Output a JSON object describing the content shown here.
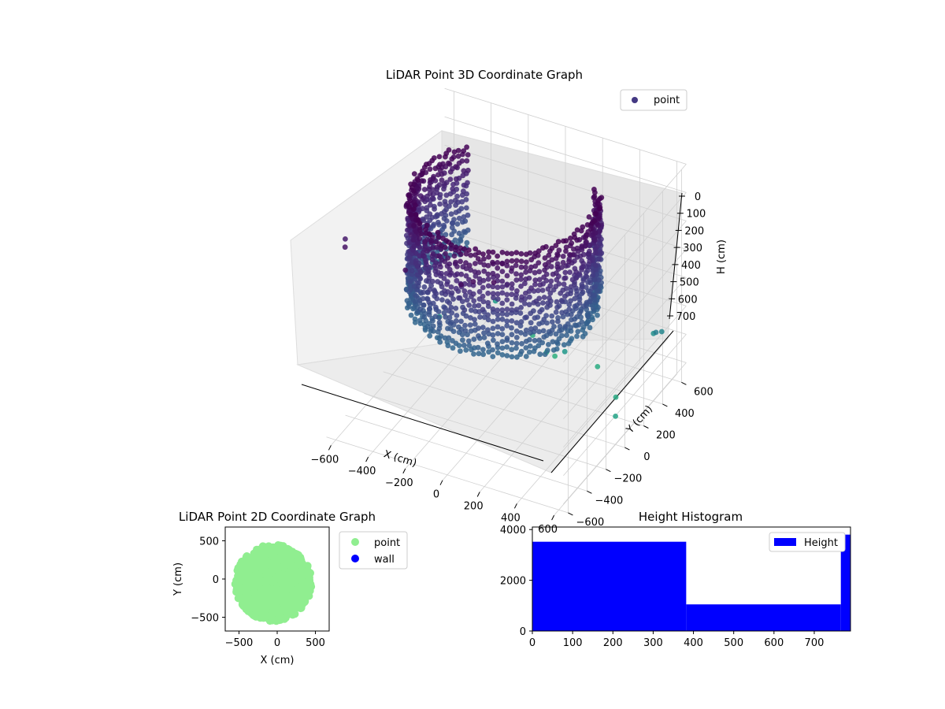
{
  "chart_data": [
    {
      "type": "scatter",
      "projection": "3d",
      "title": "LiDAR Point 3D Coordinate Graph",
      "xlabel": "X (cm)",
      "ylabel": "Y (cm)",
      "zlabel": "H (cm)",
      "xticks": [
        -600,
        -400,
        -200,
        0,
        200,
        400,
        600
      ],
      "yticks": [
        -600,
        -400,
        -200,
        0,
        200,
        400,
        600
      ],
      "zticks": [
        0,
        100,
        200,
        300,
        400,
        500,
        600,
        700
      ],
      "z_inverted": true,
      "xlim": [
        -650,
        650
      ],
      "ylim": [
        -650,
        650
      ],
      "zlim": [
        0,
        750
      ],
      "colormap": "viridis",
      "legend": {
        "placement": "top-right",
        "entries": [
          {
            "name": "point",
            "color": "#443983"
          }
        ]
      },
      "series": [
        {
          "name": "point",
          "description_of_shape": "cylindrical wall of points radius ~450 cm, heights 0-380 cm, plus sparse outliers up to ~750 cm",
          "outliers": [
            {
              "x": 0,
              "y": 450,
              "h": 720
            },
            {
              "x": 60,
              "y": 420,
              "h": 710
            },
            {
              "x": -100,
              "y": 500,
              "h": 700
            },
            {
              "x": 300,
              "y": 400,
              "h": 690
            },
            {
              "x": 500,
              "y": 200,
              "h": 680
            },
            {
              "x": 600,
              "y": 0,
              "h": 650
            },
            {
              "x": -500,
              "y": 300,
              "h": 640
            },
            {
              "x": -300,
              "y": 500,
              "h": 620
            },
            {
              "x": 200,
              "y": 250,
              "h": 600
            },
            {
              "x": 550,
              "y": 500,
              "h": 560
            },
            {
              "x": 620,
              "y": 450,
              "h": 520
            },
            {
              "x": 640,
              "y": 350,
              "h": 480
            },
            {
              "x": -600,
              "y": -500,
              "h": 80
            },
            {
              "x": -550,
              "y": -600,
              "h": 60
            },
            {
              "x": 100,
              "y": -650,
              "h": 40
            },
            {
              "x": 150,
              "y": -620,
              "h": 30
            },
            {
              "x": -200,
              "y": -650,
              "h": 50
            },
            {
              "x": 250,
              "y": -600,
              "h": 20
            }
          ]
        }
      ]
    },
    {
      "type": "scatter",
      "title": "LiDAR Point 2D Coordinate Graph",
      "xlabel": "X (cm)",
      "ylabel": "Y (cm)",
      "xticks": [
        -500,
        0,
        500
      ],
      "yticks": [
        -500,
        0,
        500
      ],
      "xlim": [
        -680,
        680
      ],
      "ylim": [
        -680,
        680
      ],
      "legend": {
        "placement": "right-outside",
        "entries": [
          {
            "name": "point",
            "color": "#90ee90"
          },
          {
            "name": "wall",
            "color": "#0000ff"
          }
        ]
      },
      "series": [
        {
          "name": "point",
          "color": "#90ee90",
          "description_of_shape": "dense filled disk radius ~480 cm centered near (-50,-50)"
        },
        {
          "name": "wall",
          "color": "#0000ff",
          "values": []
        }
      ]
    },
    {
      "type": "bar",
      "subtype": "histogram",
      "title": "Height Histogram",
      "xticks": [
        0,
        100,
        200,
        300,
        400,
        500,
        600,
        700
      ],
      "yticks": [
        0,
        2000,
        4000
      ],
      "xlim": [
        0,
        790
      ],
      "ylim": [
        0,
        4100
      ],
      "color": "#0000ff",
      "legend": {
        "placement": "top-right",
        "entries": [
          {
            "name": "Height",
            "color": "#0000ff"
          }
        ]
      },
      "bins": [
        {
          "start": 0,
          "end": 382,
          "count": 3520
        },
        {
          "start": 382,
          "end": 766,
          "count": 1050
        },
        {
          "start": 766,
          "end": 790,
          "count": 3800
        }
      ]
    }
  ]
}
